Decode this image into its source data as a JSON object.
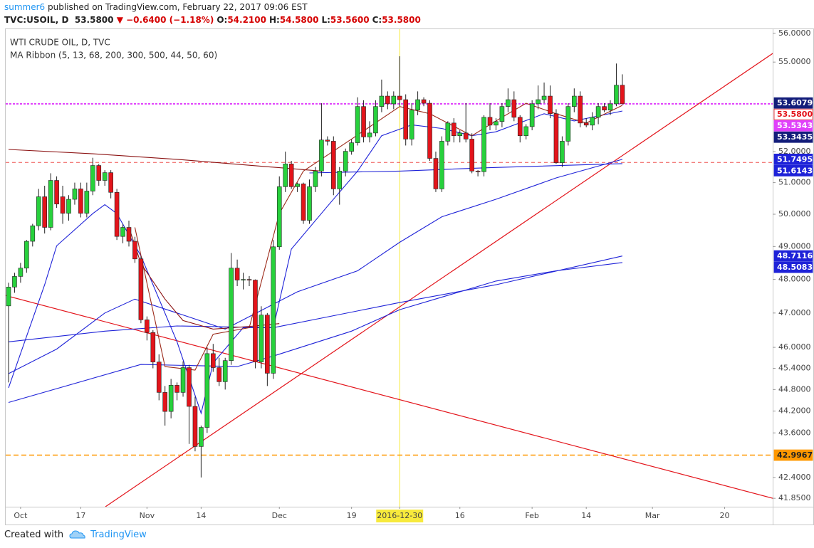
{
  "header": {
    "author": "summer6",
    "published": "published on TradingView.com, February 22, 2017 09:06 EST",
    "symbol": "TVC:USOIL, D",
    "last": "53.5800",
    "arrow": "▼",
    "change": "−0.6400 (−1.18%)",
    "ohlc": [
      {
        "label": "O:",
        "value": "54.2100"
      },
      {
        "label": "H:",
        "value": "54.5800"
      },
      {
        "label": "L:",
        "value": "53.5600"
      },
      {
        "label": "C:",
        "value": "53.5800"
      }
    ]
  },
  "footer": {
    "text": "Created with",
    "brand": "TradingView"
  },
  "chart_data": {
    "type": "candlestick",
    "title": "WTI CRUDE OIL, D, TVC",
    "subtitle": "MA Ribbon (5, 13, 68, 200, 300, 500, 44, 50, 60)",
    "log_scale": true,
    "grid": false,
    "up_color": "#27d13c",
    "down_color": "#e3141b",
    "crosshair_color": "#f7ea3c",
    "categories": [
      null,
      null,
      "Oct",
      null,
      null,
      null,
      null,
      null,
      null,
      null,
      null,
      null,
      "17",
      null,
      null,
      null,
      null,
      null,
      null,
      null,
      null,
      null,
      null,
      "Nov",
      null,
      null,
      null,
      null,
      null,
      null,
      null,
      null,
      "14",
      null,
      null,
      null,
      null,
      null,
      null,
      null,
      null,
      null,
      null,
      null,
      null,
      "Dec",
      null,
      null,
      null,
      null,
      null,
      null,
      null,
      null,
      null,
      null,
      null,
      "19",
      null,
      null,
      null,
      null,
      null,
      null,
      null,
      "2016-12-30",
      null,
      null,
      null,
      null,
      null,
      null,
      null,
      null,
      null,
      "16",
      null,
      null,
      null,
      null,
      null,
      null,
      null,
      null,
      null,
      null,
      null,
      "Feb",
      null,
      null,
      null,
      null,
      null,
      null,
      null,
      null,
      "14",
      null,
      null,
      null,
      null,
      null,
      null,
      null,
      null,
      null,
      null,
      "Mar",
      null,
      null,
      null,
      null,
      null,
      null,
      null,
      null,
      null,
      null,
      null,
      "20",
      null
    ],
    "open": [
      47.21,
      47.77,
      48.09,
      48.34,
      49.16,
      49.64,
      50.55,
      49.59,
      51.07,
      50.55,
      50.03,
      50.47,
      50.8,
      50.03,
      50.73,
      51.55,
      51.07,
      51.32,
      50.69,
      49.31,
      49.59,
      49.16,
      48.62,
      46.8,
      46.43,
      45.58,
      44.72,
      44.19,
      44.92,
      44.72,
      45.42,
      44.33,
      43.23,
      43.75,
      45.82,
      45.42,
      45.02,
      45.62,
      48.34,
      47.98,
      48.0,
      47.98,
      45.58,
      46.94,
      45.26,
      48.99,
      50.87,
      51.6,
      50.87,
      50.96,
      49.81,
      50.87,
      51.37,
      52.38,
      52.34,
      50.8,
      51.37,
      52.01,
      52.29,
      53.49,
      52.48,
      52.61,
      53.49,
      53.84,
      53.58,
      53.84,
      53.72,
      52.41,
      53.37,
      53.72,
      53.6,
      51.78,
      50.8,
      52.34,
      52.94,
      52.52,
      52.61,
      52.41,
      51.37,
      51.35,
      53.13,
      52.87,
      52.99,
      53.49,
      53.72,
      53.13,
      52.52,
      52.82,
      53.58,
      53.72,
      53.84,
      53.25,
      51.64,
      52.34,
      53.49,
      53.84,
      52.94,
      52.87,
      53.13,
      53.49,
      53.37,
      53.58,
      54.21,
      null,
      null,
      null,
      null,
      null,
      null,
      null,
      null,
      null,
      null,
      null,
      null,
      null,
      null,
      null,
      null,
      null,
      null
    ],
    "high": [
      47.9,
      48.2,
      48.5,
      49.2,
      49.7,
      50.8,
      50.9,
      51.3,
      51.2,
      50.9,
      50.6,
      51.0,
      51.0,
      51.0,
      51.8,
      51.6,
      51.4,
      51.4,
      50.8,
      49.7,
      49.8,
      49.3,
      48.7,
      46.9,
      46.5,
      45.8,
      44.9,
      45.1,
      45.0,
      45.6,
      45.5,
      44.6,
      43.8,
      46.0,
      46.1,
      45.7,
      45.7,
      48.8,
      48.6,
      48.2,
      48.1,
      48.0,
      47.2,
      47.0,
      49.2,
      51.2,
      52.0,
      51.7,
      51.0,
      51.0,
      51.1,
      51.5,
      53.6,
      52.5,
      52.5,
      51.5,
      52.1,
      52.4,
      53.8,
      53.7,
      53.0,
      53.7,
      54.4,
      54.0,
      54.0,
      55.2,
      53.9,
      53.6,
      54.0,
      53.8,
      53.7,
      52.0,
      52.5,
      53.0,
      53.1,
      52.7,
      53.6,
      52.6,
      51.4,
      53.2,
      53.6,
      53.1,
      53.6,
      54.1,
      54.0,
      53.2,
      52.9,
      53.7,
      54.2,
      54.3,
      54.2,
      53.4,
      52.5,
      53.6,
      54.1,
      54.0,
      53.1,
      53.3,
      53.6,
      53.6,
      53.7,
      54.95,
      54.58,
      null,
      null,
      null,
      null,
      null,
      null,
      null,
      null,
      null,
      null,
      null,
      null,
      null,
      null,
      null,
      null,
      null,
      null
    ],
    "low": [
      45.0,
      47.6,
      47.9,
      48.2,
      49.0,
      49.5,
      49.4,
      49.5,
      50.2,
      49.7,
      49.8,
      50.3,
      49.9,
      49.9,
      50.6,
      50.9,
      50.9,
      50.5,
      49.2,
      49.1,
      49.0,
      48.5,
      46.7,
      46.2,
      45.4,
      44.5,
      43.8,
      44.0,
      44.5,
      44.6,
      43.3,
      43.1,
      42.4,
      43.6,
      45.3,
      44.9,
      44.8,
      45.5,
      47.8,
      47.7,
      47.8,
      45.4,
      45.4,
      44.9,
      45.1,
      48.9,
      50.7,
      50.8,
      50.7,
      49.7,
      49.7,
      50.7,
      51.2,
      52.2,
      50.6,
      50.3,
      51.2,
      51.9,
      52.2,
      52.3,
      52.3,
      52.5,
      53.3,
      53.4,
      53.4,
      53.5,
      52.2,
      52.2,
      53.2,
      53.5,
      51.7,
      50.7,
      50.7,
      52.2,
      52.3,
      52.3,
      52.3,
      51.3,
      51.2,
      51.2,
      52.7,
      52.7,
      52.8,
      53.3,
      53.0,
      52.3,
      52.4,
      52.7,
      53.4,
      53.6,
      53.1,
      51.6,
      51.5,
      52.2,
      53.3,
      52.8,
      52.8,
      52.7,
      52.9,
      53.3,
      53.2,
      53.5,
      53.56,
      null,
      null,
      null,
      null,
      null,
      null,
      null,
      null,
      null,
      null,
      null,
      null,
      null,
      null,
      null,
      null,
      null,
      null
    ],
    "close": [
      47.77,
      48.09,
      48.34,
      49.16,
      49.64,
      50.55,
      49.59,
      51.07,
      50.32,
      50.03,
      50.47,
      50.8,
      50.03,
      50.73,
      51.55,
      51.07,
      51.32,
      50.69,
      49.31,
      49.59,
      49.16,
      48.62,
      46.8,
      46.43,
      45.58,
      44.72,
      44.19,
      44.92,
      44.72,
      45.42,
      44.33,
      43.23,
      43.75,
      45.82,
      45.42,
      45.02,
      45.62,
      48.34,
      47.98,
      48.0,
      47.98,
      45.58,
      46.94,
      45.26,
      48.99,
      50.87,
      51.6,
      50.87,
      50.96,
      49.81,
      50.87,
      51.37,
      52.38,
      52.34,
      50.8,
      51.37,
      52.01,
      52.29,
      53.49,
      52.48,
      52.61,
      53.49,
      53.84,
      53.58,
      53.84,
      53.72,
      52.41,
      53.37,
      53.72,
      53.6,
      51.78,
      50.8,
      52.34,
      52.94,
      52.52,
      52.61,
      52.41,
      51.37,
      51.35,
      53.13,
      52.87,
      52.99,
      53.49,
      53.72,
      53.13,
      52.52,
      52.82,
      53.58,
      53.72,
      53.84,
      53.25,
      51.64,
      52.34,
      53.49,
      53.84,
      52.94,
      52.87,
      53.13,
      53.49,
      53.37,
      53.58,
      54.21,
      53.58,
      null,
      null,
      null,
      null,
      null,
      null,
      null,
      null,
      null,
      null,
      null,
      null,
      null,
      null,
      null,
      null,
      null,
      null
    ],
    "series": [
      {
        "color": "#8b1212",
        "x": [
          0,
          14,
          28,
          45,
          52
        ],
        "values": [
          52.07,
          51.93,
          51.75,
          51.48,
          51.37
        ]
      },
      {
        "color": "#1e22d8",
        "x": [
          50,
          65,
          80,
          95,
          102
        ],
        "values": [
          51.31,
          51.37,
          51.48,
          51.57,
          51.61
        ]
      },
      {
        "color": "#1e22d8",
        "x": [
          0,
          8,
          16,
          21,
          28,
          36,
          48,
          58,
          65,
          72,
          81,
          91,
          102
        ],
        "values": [
          45.25,
          45.95,
          47.0,
          47.41,
          47.0,
          46.53,
          47.63,
          48.26,
          49.13,
          49.92,
          50.47,
          51.15,
          51.75
        ]
      },
      {
        "color": "#1e22d8",
        "x": [
          0,
          16,
          28,
          44,
          65,
          81,
          102
        ],
        "values": [
          46.16,
          46.47,
          46.62,
          46.57,
          47.31,
          47.84,
          48.71
        ]
      },
      {
        "color": "#1e22d8",
        "x": [
          0,
          22,
          38,
          44,
          57,
          65,
          81,
          91,
          102
        ],
        "values": [
          44.44,
          45.51,
          45.45,
          45.75,
          46.47,
          47.1,
          47.95,
          48.26,
          48.51
        ]
      },
      {
        "color": "#1e22d8",
        "x": [
          0,
          6,
          8,
          14,
          16,
          18,
          22,
          28,
          32,
          34,
          39,
          44,
          47,
          53,
          58,
          62,
          67,
          72,
          77,
          81,
          89,
          94,
          102
        ],
        "values": [
          44.85,
          47.84,
          49.02,
          50.02,
          50.3,
          50.02,
          48.71,
          46.16,
          44.14,
          45.55,
          46.57,
          46.57,
          48.92,
          50.25,
          51.37,
          52.52,
          52.88,
          52.76,
          52.52,
          52.65,
          53.25,
          53.01,
          53.34
        ]
      },
      {
        "color": "#9c2a1a",
        "x": [
          21,
          26,
          31,
          34,
          40,
          45,
          49,
          57,
          65,
          70,
          77,
          82,
          86,
          91,
          96,
          102
        ],
        "values": [
          49.59,
          45.45,
          45.35,
          46.38,
          46.57,
          50.02,
          51.37,
          52.41,
          53.49,
          53.25,
          52.52,
          53.13,
          53.6,
          53.25,
          52.94,
          53.53
        ]
      },
      {
        "color": "#8b1212",
        "x": [
          20,
          22,
          26,
          29,
          34,
          41,
          45
        ],
        "values": [
          49.59,
          48.48,
          47.41,
          46.78,
          46.53,
          46.62,
          46.69
        ]
      }
    ],
    "trend_lines": [
      {
        "color": "#e3141b",
        "x": [
          16.1,
          127
        ],
        "values": [
          41.63,
          55.3
        ]
      },
      {
        "color": "#e3141b",
        "x": [
          -0.5,
          127
        ],
        "values": [
          47.52,
          41.85
        ]
      }
    ],
    "hlines": [
      {
        "value": 53.58,
        "color": "#e040fb",
        "dash": "3,2",
        "width": 2
      },
      {
        "value": 51.65,
        "color": "#ef5350",
        "dash": "5,4",
        "width": 1
      },
      {
        "value": 42.9967,
        "color": "#ff9800",
        "dash": "7,4",
        "width": 1.5
      }
    ],
    "price_labels": [
      {
        "value": 53.6079,
        "label": "53.6079",
        "color": "#131d7a",
        "text_color": "#ffffff"
      },
      {
        "value": 53.58,
        "label": "53.5800",
        "color": "#ffffff",
        "text_color": "#e3141b"
      },
      {
        "value": 53.5343,
        "label": "53.5343",
        "color": "#e040fb",
        "text_color": "#ffffff"
      },
      {
        "value": 53.3435,
        "label": "53.3435",
        "color": "#131d7a",
        "text_color": "#ffffff"
      },
      {
        "value": 51.7495,
        "label": "51.7495",
        "color": "#1e22d8",
        "text_color": "#ffffff"
      },
      {
        "value": 51.6143,
        "label": "51.6143",
        "color": "#1e22d8",
        "text_color": "#ffffff"
      },
      {
        "value": 48.7116,
        "label": "48.7116",
        "color": "#1e22d8",
        "text_color": "#ffffff"
      },
      {
        "value": 48.5083,
        "label": "48.5083",
        "color": "#1e22d8",
        "text_color": "#ffffff"
      },
      {
        "value": 42.9967,
        "label": "42.9967",
        "color": "#ff9800",
        "text_color": "#222222"
      }
    ],
    "ylim": [
      41.63,
      56.17
    ],
    "yticks": [
      {
        "value": 56,
        "label": "56.0000"
      },
      {
        "value": 55,
        "label": "55.0000"
      },
      {
        "value": 52,
        "label": "52.0000"
      },
      {
        "value": 51,
        "label": "51.0000"
      },
      {
        "value": 50,
        "label": "50.0000"
      },
      {
        "value": 49,
        "label": "49.0000"
      },
      {
        "value": 48,
        "label": "48.0000"
      },
      {
        "value": 47,
        "label": "47.0000"
      },
      {
        "value": 46,
        "label": "46.0000"
      },
      {
        "value": 45.4,
        "label": "45.4000"
      },
      {
        "value": 44.8,
        "label": "44.8000"
      },
      {
        "value": 44.2,
        "label": "44.2000"
      },
      {
        "value": 43.6,
        "label": "43.6000"
      },
      {
        "value": 42.4,
        "label": "42.4000"
      },
      {
        "value": 41.85,
        "label": "41.8500"
      }
    ]
  }
}
